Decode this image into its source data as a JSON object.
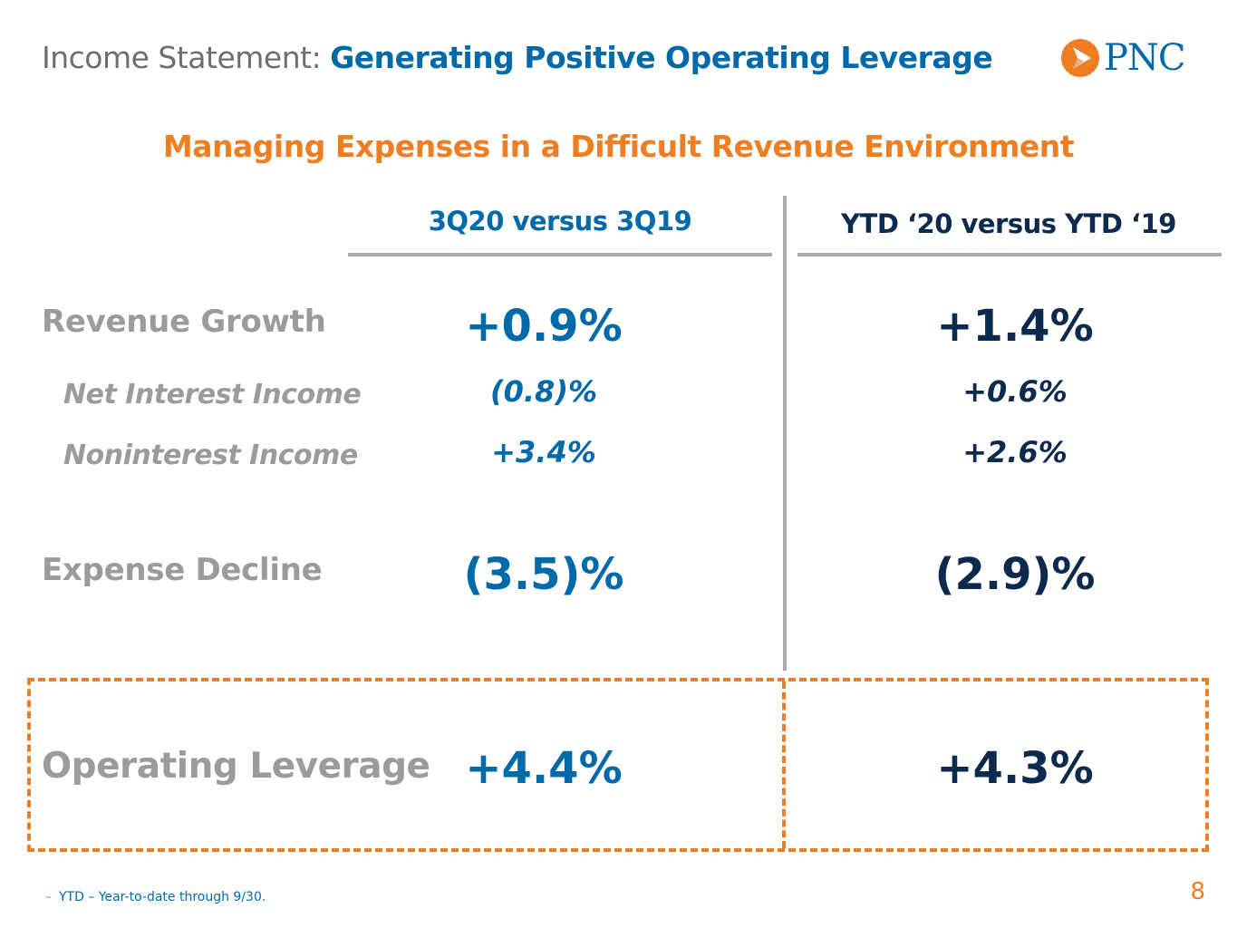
{
  "header": {
    "title_prefix": "Income Statement:",
    "title_main": "Generating Positive Operating Leverage",
    "logo_text": "PNC"
  },
  "subtitle": "Managing Expenses in a Difficult Revenue Environment",
  "columns": {
    "col1": "3Q20 versus 3Q19",
    "col2": "YTD ‘20 versus YTD ‘19"
  },
  "rows": {
    "revenue_growth": {
      "label": "Revenue Growth",
      "col1": "+0.9%",
      "col2": "+1.4%"
    },
    "net_interest_income": {
      "label": "Net Interest Income",
      "col1": "(0.8)%",
      "col2": "+0.6%"
    },
    "noninterest_income": {
      "label": "Noninterest Income",
      "col1": "+3.4%",
      "col2": "+2.6%"
    },
    "expense_decline": {
      "label": "Expense Decline",
      "col1": "(3.5)%",
      "col2": "(2.9)%"
    },
    "operating_leverage": {
      "label": "Operating Leverage",
      "col1": "+4.4%",
      "col2": "+4.3%"
    }
  },
  "footnote": {
    "marker": "–",
    "text": "YTD – Year-to-date through 9/30."
  },
  "page_number": "8",
  "colors": {
    "blue": "#0069aa",
    "navy": "#0b2a4e",
    "orange": "#ef7d22",
    "gray": "#9a9b9d",
    "rule_gray": "#ababab"
  }
}
